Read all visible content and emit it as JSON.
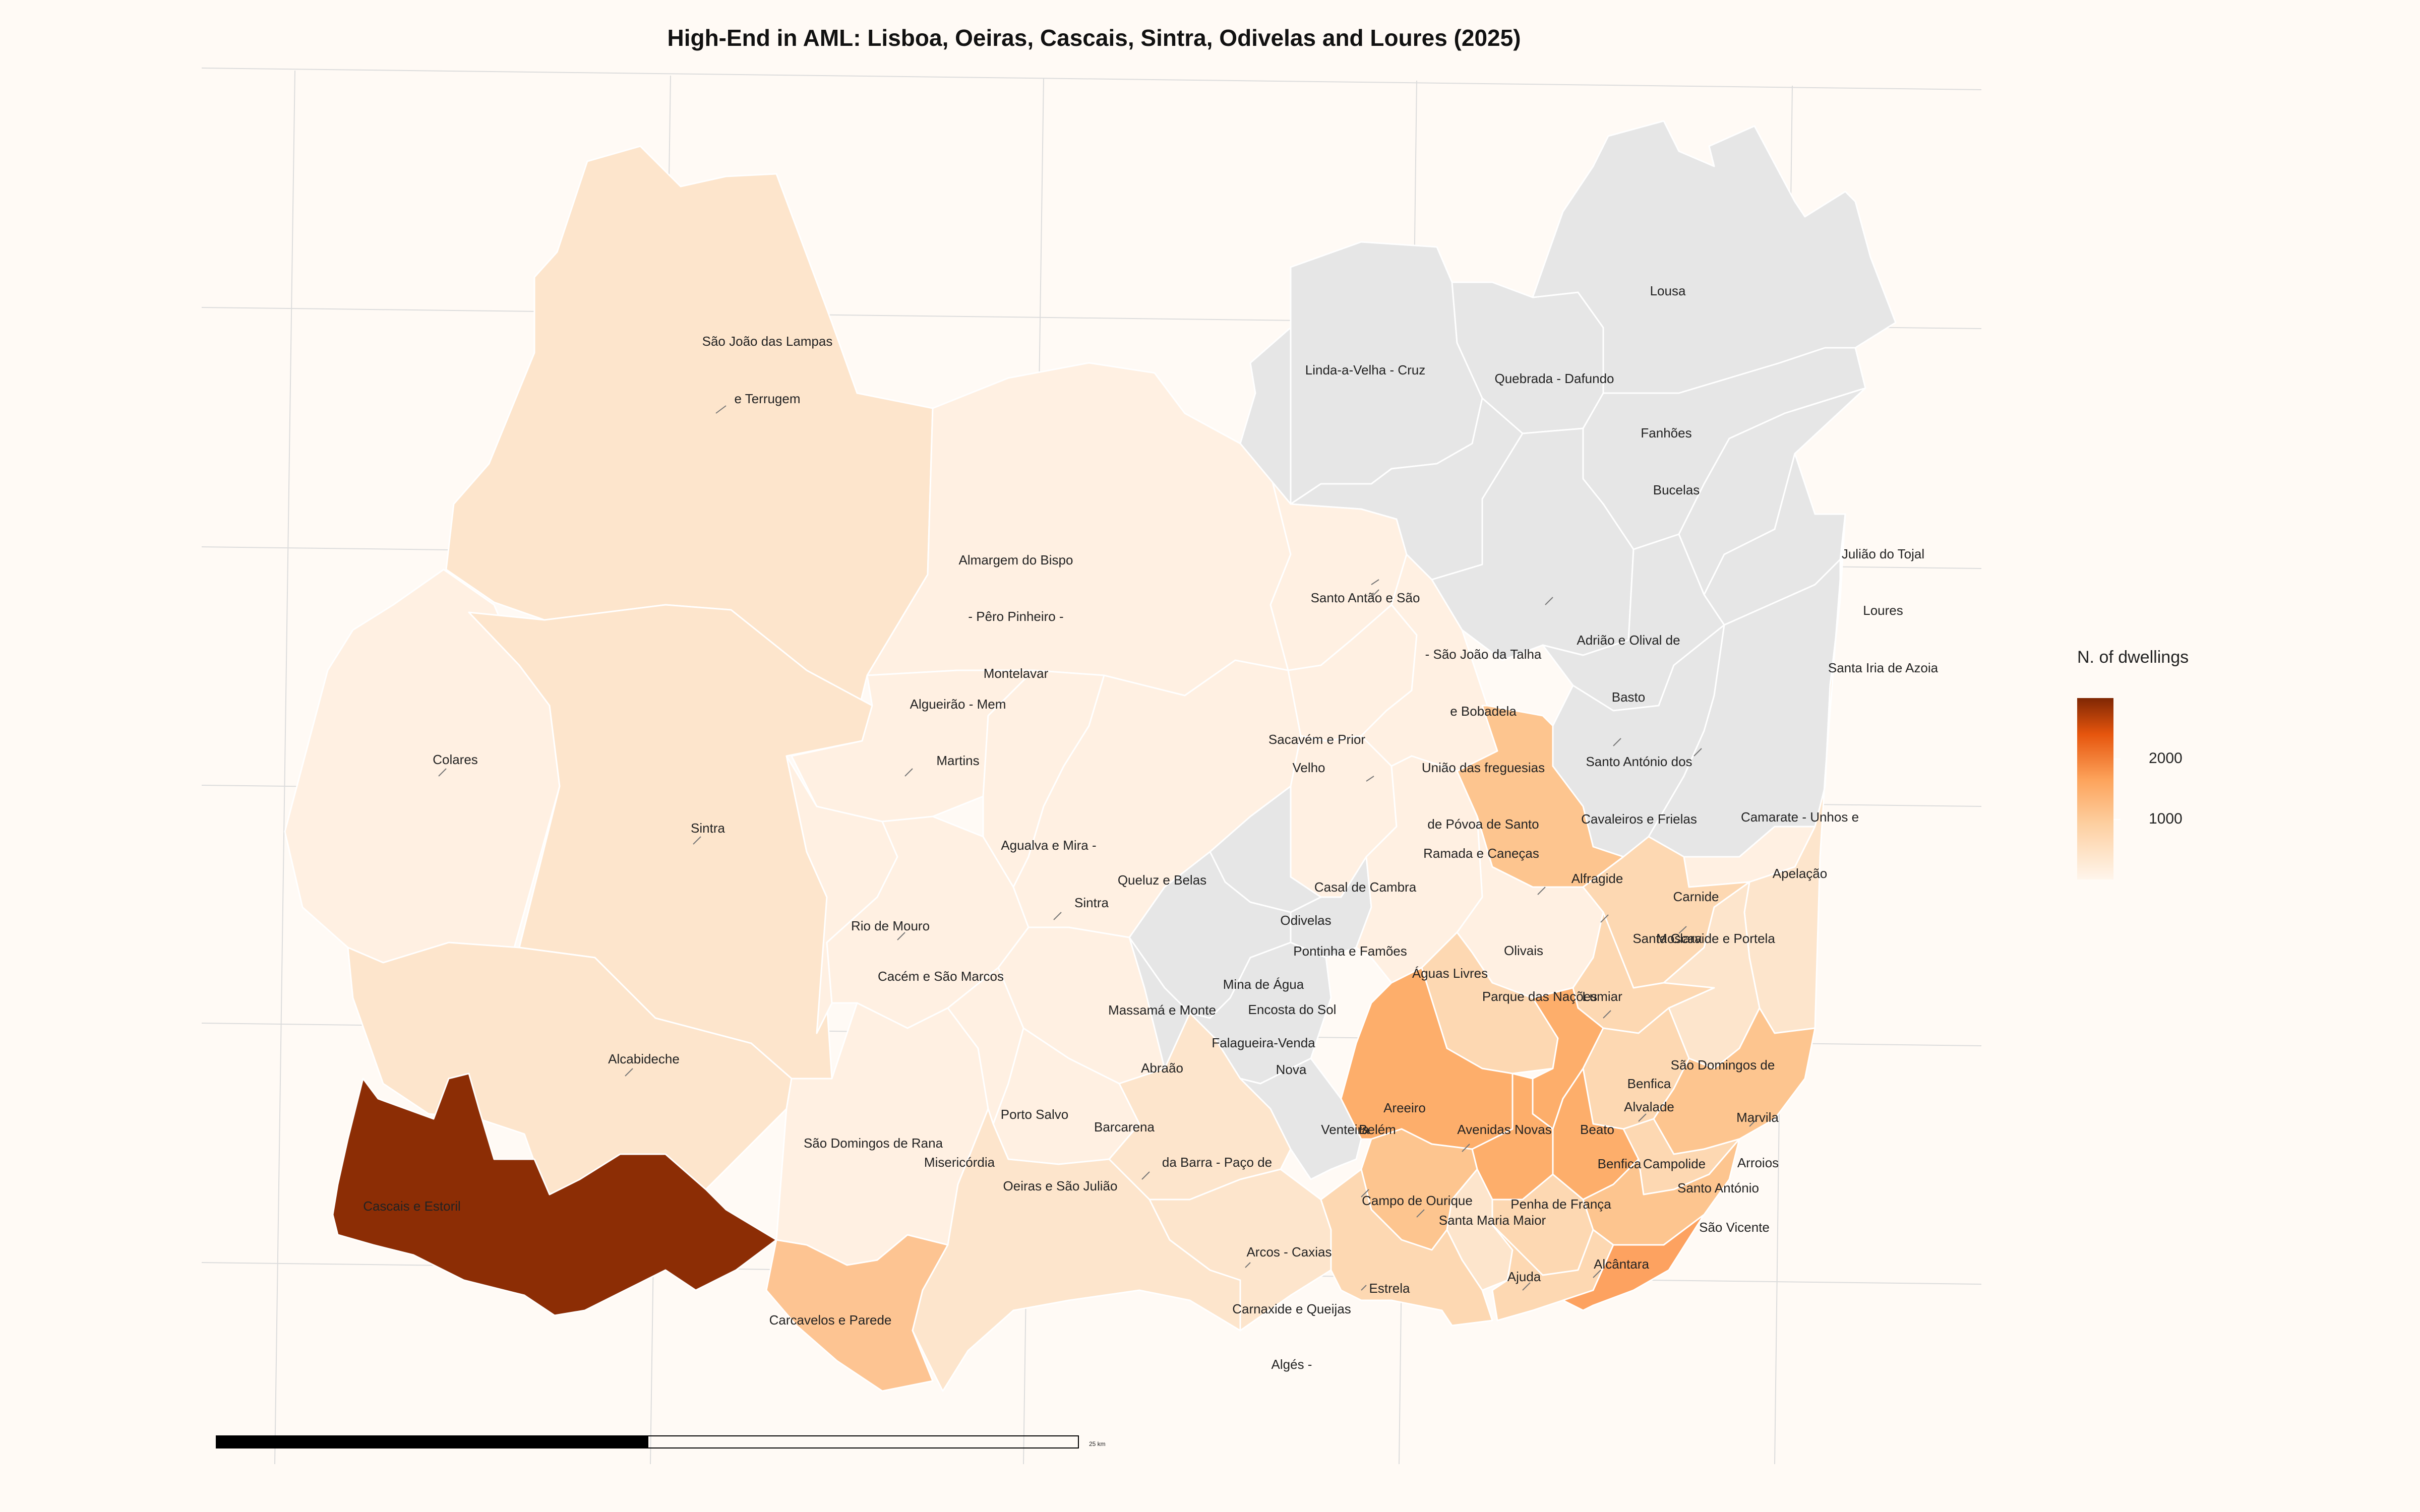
{
  "title": "High-End in AML: Lisboa, Oeiras, Cascais, Sintra, Odivelas and Loures (2025)",
  "legend": {
    "title": "N. of dwellings",
    "ticks": [
      "2000",
      "1000"
    ]
  },
  "scale_bar": {
    "label": "25 km"
  },
  "colors": {
    "background": "#fffaf5",
    "no_data": "#e6e6e6",
    "scale_low": "#fff5eb",
    "scale_mid": "#fda35b",
    "scale_high": "#7f2704"
  },
  "chart_data": {
    "type": "choropleth",
    "variable": "N. of dwellings",
    "color_scale": "sequential oranges",
    "legend_placement": "right",
    "regions": [
      {
        "name": "São João das Lampas e Terrugem",
        "class": "low"
      },
      {
        "name": "Colares",
        "class": "very-low"
      },
      {
        "name": "Sintra",
        "class": "low"
      },
      {
        "name": "Almargem do Bispo - Pêro Pinheiro - Montelavar",
        "class": "very-low"
      },
      {
        "name": "Algueirão - Mem Martins",
        "class": "very-low"
      },
      {
        "name": "Rio de Mouro",
        "class": "very-low"
      },
      {
        "name": "Cacém e São Marcos",
        "class": "very-low"
      },
      {
        "name": "Agualva e Mira - Sintra",
        "class": "very-low"
      },
      {
        "name": "Queluz e Belas",
        "class": "very-low"
      },
      {
        "name": "Massamá e Monte Abraão",
        "class": "very-low"
      },
      {
        "name": "Alcabideche",
        "class": "low"
      },
      {
        "name": "Cascais e Estoril",
        "value": 2900
      },
      {
        "name": "Carcavelos e Parede",
        "value": 1100
      },
      {
        "name": "São Domingos de Rana",
        "class": "very-low"
      },
      {
        "name": "Porto Salvo",
        "class": "very-low"
      },
      {
        "name": "Barcarena",
        "class": "very-low"
      },
      {
        "name": "Oeiras e São Julião da Barra - Paço de Arcos - Caxias",
        "class": "low"
      },
      {
        "name": "Carnaxide e Queijas",
        "class": "low"
      },
      {
        "name": "Algés - Linda-a-Velha - Cruz Quebrada - Dafundo",
        "class": "low"
      },
      {
        "name": "Ramada e Caneças",
        "class": "very-low"
      },
      {
        "name": "Casal de Cambra",
        "class": "very-low"
      },
      {
        "name": "Pontinha e Famões",
        "class": "very-low"
      },
      {
        "name": "Odivelas",
        "class": "very-low"
      },
      {
        "name": "Mina de Água",
        "class": "no-data"
      },
      {
        "name": "Encosta do Sol",
        "class": "no-data"
      },
      {
        "name": "Falagueira-Venda Nova",
        "class": "no-data"
      },
      {
        "name": "Venteira",
        "class": "no-data"
      },
      {
        "name": "Águas Livres",
        "class": "no-data"
      },
      {
        "name": "Alfragide",
        "class": "no-data"
      },
      {
        "name": "Lousa",
        "class": "no-data"
      },
      {
        "name": "Fanhões",
        "class": "no-data"
      },
      {
        "name": "Bucelas",
        "class": "no-data"
      },
      {
        "name": "Loures",
        "class": "no-data"
      },
      {
        "name": "Santo Antão e São Julião do Tojal",
        "class": "no-data"
      },
      {
        "name": "Santa Iria de Azoia - São João da Talha e Bobadela",
        "class": "no-data"
      },
      {
        "name": "União das freguesias de Póvoa de Santo Adrião e Olival de Basto",
        "class": "no-data"
      },
      {
        "name": "Santo António dos Cavaleiros e Frielas",
        "class": "no-data"
      },
      {
        "name": "Camarate - Unhos e Apelação",
        "class": "no-data"
      },
      {
        "name": "Sacavém e Prior Velho",
        "class": "no-data"
      },
      {
        "name": "Moscavide e Portela",
        "class": "no-data"
      },
      {
        "name": "Santa Clara",
        "class": "very-low"
      },
      {
        "name": "Lumiar",
        "class": "mid"
      },
      {
        "name": "Carnide",
        "class": "very-low"
      },
      {
        "name": "Olivais",
        "class": "very-low"
      },
      {
        "name": "Parque das Nações",
        "class": "low-mid"
      },
      {
        "name": "São Domingos de Benfica",
        "class": "low"
      },
      {
        "name": "Alvalade",
        "class": "low-mid"
      },
      {
        "name": "Marvila",
        "class": "low-mid"
      },
      {
        "name": "Benfica",
        "class": "low"
      },
      {
        "name": "Areeiro",
        "class": "mid-high"
      },
      {
        "name": "Avenidas Novas",
        "class": "mid-high"
      },
      {
        "name": "Beato",
        "class": "low-mid"
      },
      {
        "name": "Campolide",
        "class": "mid"
      },
      {
        "name": "Arroios",
        "class": "mid-high"
      },
      {
        "name": "Santo António",
        "class": "mid-high"
      },
      {
        "name": "Penha de França",
        "class": "low-mid"
      },
      {
        "name": "São Vicente",
        "class": "low-mid"
      },
      {
        "name": "Campo de Ourique",
        "class": "mid"
      },
      {
        "name": "Santa Maria Maior",
        "class": "mid"
      },
      {
        "name": "Ajuda",
        "class": "low"
      },
      {
        "name": "Alcântara",
        "class": "low-mid"
      },
      {
        "name": "Estrela",
        "value": 1400
      },
      {
        "name": "Misericórdia",
        "class": "low-mid"
      },
      {
        "name": "Belém",
        "class": "low"
      }
    ]
  },
  "labels": [
    {
      "text": "São João das Lampas"
    },
    {
      "text": "e Terrugem"
    },
    {
      "text": "Almargem do Bispo"
    },
    {
      "text": "- Pêro Pinheiro -"
    },
    {
      "text": "Montelavar"
    },
    {
      "text": "Algueirão - Mem"
    },
    {
      "text": "Martins"
    },
    {
      "text": "Colares"
    },
    {
      "text": "Sintra"
    },
    {
      "text": "Agualva e Mira -"
    },
    {
      "text": "Sintra"
    },
    {
      "text": "Queluz e Belas"
    },
    {
      "text": "Rio de Mouro"
    },
    {
      "text": "Cacém e São Marcos"
    },
    {
      "text": "Massamá e Monte"
    },
    {
      "text": "Abraão"
    },
    {
      "text": "Alcabideche"
    },
    {
      "text": "Cascais e Estoril"
    },
    {
      "text": "Carcavelos e Parede"
    },
    {
      "text": "São Domingos de Rana"
    },
    {
      "text": "Porto Salvo"
    },
    {
      "text": "Barcarena"
    },
    {
      "text": "Oeiras e São Julião"
    },
    {
      "text": "da Barra - Paço de"
    },
    {
      "text": "Arcos - Caxias"
    },
    {
      "text": "Carnaxide e Queijas"
    },
    {
      "text": "Algés -"
    },
    {
      "text": "Linda-a-Velha - Cruz"
    },
    {
      "text": "Quebrada - Dafundo"
    },
    {
      "text": "Lousa"
    },
    {
      "text": "Fanhões"
    },
    {
      "text": "Bucelas"
    },
    {
      "text": "Santo Antão e São"
    },
    {
      "text": "Julião do Tojal"
    },
    {
      "text": "Loures"
    },
    {
      "text": "Santa Iria de Azoia"
    },
    {
      "text": "- São João da Talha"
    },
    {
      "text": "e Bobadela"
    },
    {
      "text": "União das freguesias"
    },
    {
      "text": "de Póvoa de Santo"
    },
    {
      "text": "Adrião e Olival de"
    },
    {
      "text": "Basto"
    },
    {
      "text": "Santo António dos"
    },
    {
      "text": "Cavaleiros e Frielas"
    },
    {
      "text": "Camarate - Unhos e"
    },
    {
      "text": "Apelação"
    },
    {
      "text": "Sacavém e Prior"
    },
    {
      "text": "Velho"
    },
    {
      "text": "Ramada e Caneças"
    },
    {
      "text": "Casal de Cambra"
    },
    {
      "text": "Odivelas"
    },
    {
      "text": "Pontinha e Famões"
    },
    {
      "text": "Mina de Água"
    },
    {
      "text": "Encosta do Sol"
    },
    {
      "text": "Falagueira-Venda"
    },
    {
      "text": "Nova"
    },
    {
      "text": "Venteira"
    },
    {
      "text": "Águas Livres"
    },
    {
      "text": "Alfragide"
    },
    {
      "text": "Carnide"
    },
    {
      "text": "Santa Clara"
    },
    {
      "text": "Moscavide e Portela"
    },
    {
      "text": "Olivais"
    },
    {
      "text": "Parque das Nações"
    },
    {
      "text": "Lumiar"
    },
    {
      "text": "São Domingos de"
    },
    {
      "text": "Benfica"
    },
    {
      "text": "Alvalade"
    },
    {
      "text": "Marvila"
    },
    {
      "text": "Areeiro"
    },
    {
      "text": "Avenidas Novas"
    },
    {
      "text": "Beato"
    },
    {
      "text": "Benfica"
    },
    {
      "text": "Campolide"
    },
    {
      "text": "Arroios"
    },
    {
      "text": "Santo António"
    },
    {
      "text": "Penha de França"
    },
    {
      "text": "São Vicente"
    },
    {
      "text": "Campo de Ourique"
    },
    {
      "text": "Santa Maria Maior"
    },
    {
      "text": "Ajuda"
    },
    {
      "text": "Alcântara"
    },
    {
      "text": "Estrela"
    },
    {
      "text": "Misericórdia"
    },
    {
      "text": "Belém"
    }
  ]
}
